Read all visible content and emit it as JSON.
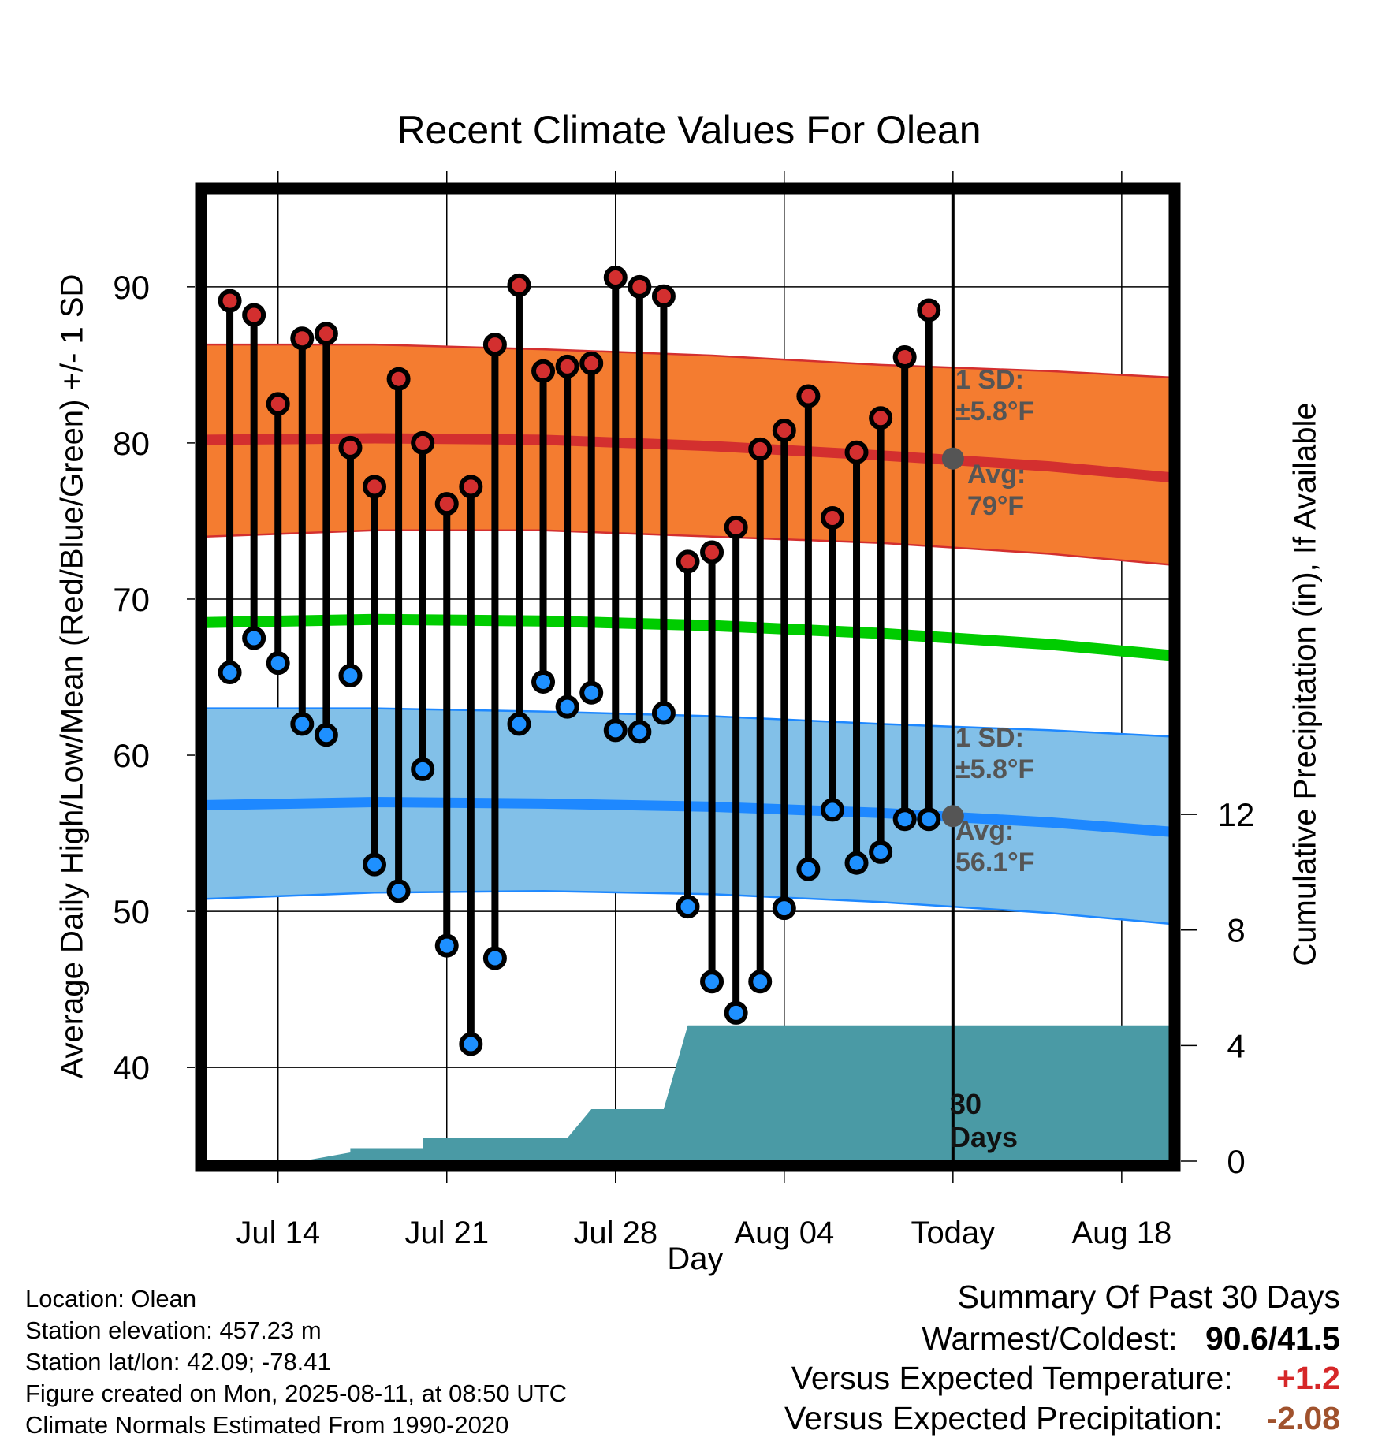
{
  "title": "Recent Climate Values For Olean",
  "colors": {
    "high_dot": "#d32f2f",
    "low_dot": "#1e90ff",
    "high_band": "#f47c30",
    "high_edge": "#d32f2f",
    "low_band": "#82c0e8",
    "low_edge": "#1e88ff",
    "mean_line": "#00cc00",
    "precip_fill": "#4a9aa5",
    "today_marker": "#555555"
  },
  "annotations": {
    "high_sd_line1": "1 SD:",
    "high_sd_line2": "±5.8°F",
    "high_avg_line1": "Avg:",
    "high_avg_line2": "79°F",
    "low_sd_line1": "1 SD:",
    "low_sd_line2": "±5.8°F",
    "low_avg_line1": "Avg:",
    "low_avg_line2": "56.1°F",
    "days_line1": "30",
    "days_line2": "Days"
  },
  "footer": {
    "location": "Location: Olean",
    "elevation": "Station elevation: 457.23 m",
    "latlon": "Station lat/lon: 42.09; -78.41",
    "created": "Figure created on Mon, 2025-08-11, at 08:50 UTC",
    "normals": "Climate Normals Estimated From 1990-2020"
  },
  "summary": {
    "heading": "Summary Of Past 30 Days",
    "warm_cold_label": "Warmest/Coldest:",
    "warm_cold_value": "90.6/41.5",
    "temp_label": "Versus Expected Temperature:",
    "temp_value": "+1.2",
    "precip_label": "Versus Expected Precipitation:",
    "precip_value": "-2.08"
  },
  "chart_data": {
    "type": "line",
    "xlabel": "Day",
    "ylabel": "Average Daily High/Low/Mean (Red/Blue/Green) +/- 1 SD",
    "y2label": "Cumulative Precipitation (in), If Available",
    "xlim": [
      "2025-07-11",
      "2025-08-20"
    ],
    "ylim": [
      34,
      96
    ],
    "y2lim": [
      0,
      33.5
    ],
    "x_ticks": [
      {
        "date": "2025-07-14",
        "label": "Jul 14"
      },
      {
        "date": "2025-07-21",
        "label": "Jul 21"
      },
      {
        "date": "2025-07-28",
        "label": "Jul 28"
      },
      {
        "date": "2025-08-04",
        "label": "Aug 04"
      },
      {
        "date": "2025-08-11",
        "label": "Today"
      },
      {
        "date": "2025-08-18",
        "label": "Aug 18"
      }
    ],
    "y_ticks": [
      40,
      50,
      60,
      70,
      80,
      90
    ],
    "y2_ticks": [
      0,
      4,
      8,
      12
    ],
    "today": "2025-08-11",
    "daily_observations": {
      "dates": [
        "2025-07-12",
        "2025-07-13",
        "2025-07-14",
        "2025-07-15",
        "2025-07-16",
        "2025-07-17",
        "2025-07-18",
        "2025-07-19",
        "2025-07-20",
        "2025-07-21",
        "2025-07-22",
        "2025-07-23",
        "2025-07-24",
        "2025-07-25",
        "2025-07-26",
        "2025-07-27",
        "2025-07-28",
        "2025-07-29",
        "2025-07-30",
        "2025-07-31",
        "2025-08-01",
        "2025-08-02",
        "2025-08-03",
        "2025-08-04",
        "2025-08-05",
        "2025-08-06",
        "2025-08-07",
        "2025-08-08",
        "2025-08-09",
        "2025-08-10"
      ],
      "high": [
        89.1,
        88.2,
        82.5,
        86.7,
        87.0,
        79.7,
        77.2,
        84.1,
        80.0,
        76.1,
        77.2,
        86.3,
        90.1,
        84.6,
        84.9,
        85.1,
        90.6,
        90.0,
        89.4,
        72.4,
        73.0,
        74.6,
        79.6,
        80.8,
        83.0,
        75.2,
        79.4,
        81.6,
        85.5,
        88.5
      ],
      "low": [
        65.3,
        67.5,
        65.9,
        62.0,
        61.3,
        65.1,
        53.0,
        51.3,
        59.1,
        47.8,
        41.5,
        47.0,
        62.0,
        64.7,
        63.1,
        64.0,
        61.6,
        61.5,
        62.7,
        50.3,
        45.5,
        43.5,
        45.5,
        50.2,
        52.7,
        56.5,
        53.1,
        53.8,
        55.9,
        55.9
      ]
    },
    "series": [
      {
        "name": "Avg High",
        "x": [
          "2025-07-11",
          "2025-07-18",
          "2025-07-25",
          "2025-08-01",
          "2025-08-08",
          "2025-08-15",
          "2025-08-20"
        ],
        "values": [
          80.2,
          80.3,
          80.2,
          79.8,
          79.2,
          78.5,
          77.8
        ]
      },
      {
        "name": "High +1 SD",
        "x": [
          "2025-07-11",
          "2025-07-18",
          "2025-07-25",
          "2025-08-01",
          "2025-08-08",
          "2025-08-15",
          "2025-08-20"
        ],
        "values": [
          86.3,
          86.3,
          86.0,
          85.6,
          85.0,
          84.6,
          84.2
        ]
      },
      {
        "name": "High -1 SD",
        "x": [
          "2025-07-11",
          "2025-07-18",
          "2025-07-25",
          "2025-08-01",
          "2025-08-08",
          "2025-08-15",
          "2025-08-20"
        ],
        "values": [
          74.0,
          74.4,
          74.4,
          74.0,
          73.6,
          72.9,
          72.2
        ]
      },
      {
        "name": "Avg Mean",
        "x": [
          "2025-07-11",
          "2025-07-18",
          "2025-07-25",
          "2025-08-01",
          "2025-08-08",
          "2025-08-15",
          "2025-08-20"
        ],
        "values": [
          68.5,
          68.7,
          68.6,
          68.3,
          67.8,
          67.1,
          66.4
        ]
      },
      {
        "name": "Avg Low",
        "x": [
          "2025-07-11",
          "2025-07-18",
          "2025-07-25",
          "2025-08-01",
          "2025-08-08",
          "2025-08-15",
          "2025-08-20"
        ],
        "values": [
          56.8,
          57.0,
          56.9,
          56.7,
          56.3,
          55.7,
          55.1
        ]
      },
      {
        "name": "Low +1 SD",
        "x": [
          "2025-07-11",
          "2025-07-18",
          "2025-07-25",
          "2025-08-01",
          "2025-08-08",
          "2025-08-15",
          "2025-08-20"
        ],
        "values": [
          63.0,
          63.0,
          62.8,
          62.5,
          62.0,
          61.6,
          61.2
        ]
      },
      {
        "name": "Low -1 SD",
        "x": [
          "2025-07-11",
          "2025-07-18",
          "2025-07-25",
          "2025-08-01",
          "2025-08-08",
          "2025-08-15",
          "2025-08-20"
        ],
        "values": [
          50.8,
          51.2,
          51.3,
          51.1,
          50.6,
          49.9,
          49.2
        ]
      }
    ],
    "today_markers": {
      "high_avg": 79,
      "low_avg": 56.1
    },
    "cumulative_precip": {
      "x": [
        "2025-07-11",
        "2025-07-15",
        "2025-07-17",
        "2025-07-17",
        "2025-07-20",
        "2025-07-20",
        "2025-07-26",
        "2025-07-27",
        "2025-07-30",
        "2025-07-31",
        "2025-08-20"
      ],
      "values": [
        0,
        0,
        0.3,
        0.45,
        0.45,
        0.8,
        0.8,
        1.8,
        1.8,
        4.7,
        4.7
      ]
    }
  }
}
